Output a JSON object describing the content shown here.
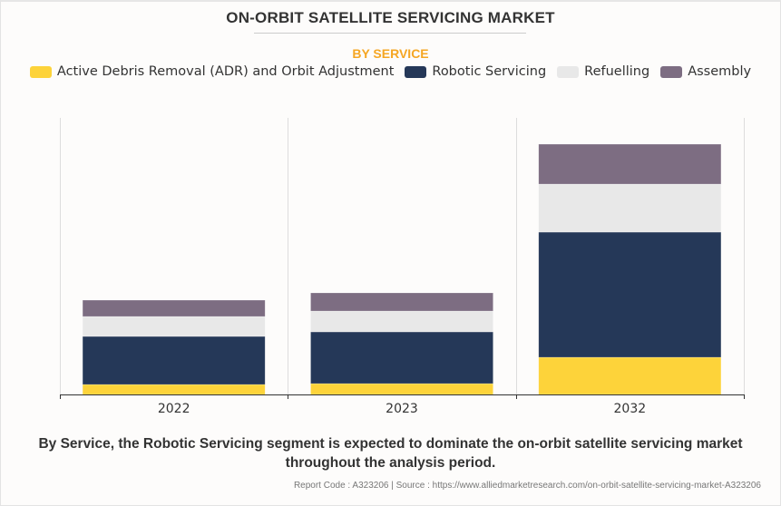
{
  "header": {
    "title": "ON-ORBIT SATELLITE SERVICING MARKET",
    "subtitle": "BY SERVICE"
  },
  "legend": [
    {
      "label": "Active Debris Removal (ADR) and Orbit Adjustment",
      "color": "#fdd33a"
    },
    {
      "label": "Robotic Servicing",
      "color": "#253858"
    },
    {
      "label": "Refuelling",
      "color": "#e8e8e8"
    },
    {
      "label": "Assembly",
      "color": "#7d6d82"
    }
  ],
  "chart_data": {
    "type": "bar",
    "stacked": true,
    "title": "ON-ORBIT SATELLITE SERVICING MARKET",
    "subtitle": "BY SERVICE",
    "xlabel": "",
    "ylabel": "",
    "y_axis_shown": false,
    "value_units": "relative (no y-axis scale shown)",
    "categories": [
      "2022",
      "2023",
      "2032"
    ],
    "series": [
      {
        "name": "Active Debris Removal (ADR) and Orbit Adjustment",
        "color": "#fdd33a",
        "values": [
          11,
          12,
          41
        ]
      },
      {
        "name": "Robotic Servicing",
        "color": "#253858",
        "values": [
          53,
          57,
          138
        ]
      },
      {
        "name": "Refuelling",
        "color": "#e8e8e8",
        "values": [
          22,
          23,
          53
        ]
      },
      {
        "name": "Assembly",
        "color": "#7d6d82",
        "values": [
          18,
          20,
          44
        ]
      }
    ],
    "ylim": [
      0,
      305
    ],
    "grid": "vertical category separators",
    "legend_position": "top"
  },
  "footer": {
    "note": "By Service, the Robotic Servicing segment is expected to dominate the on-orbit satellite servicing market throughout the analysis period.",
    "source": "Report Code : A323206  |  Source : https://www.alliedmarketresearch.com/on-orbit-satellite-servicing-market-A323206"
  }
}
